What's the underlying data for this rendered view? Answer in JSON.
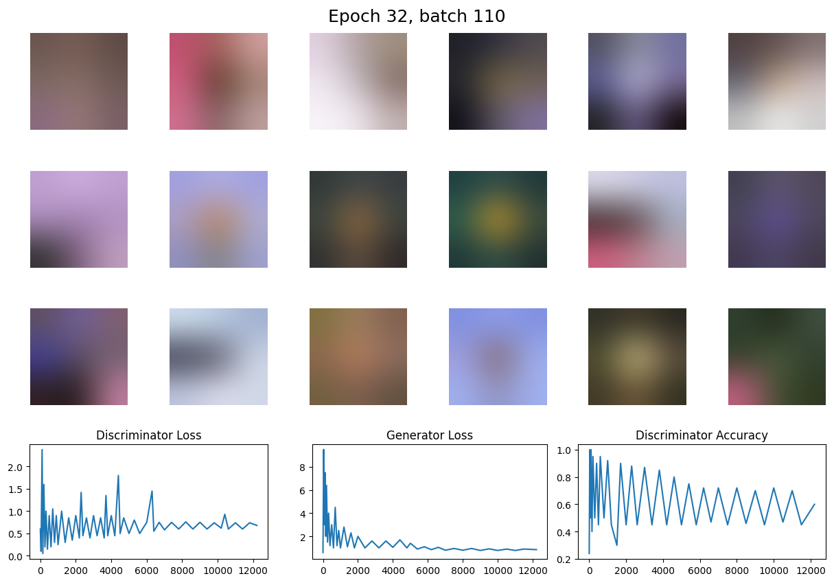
{
  "figure": {
    "title": "Epoch 32, batch 110",
    "images": [
      {
        "colors": [
          [
            "#6b5550",
            "#7a6058",
            "#5e4a45"
          ],
          [
            "#7d6a62",
            "#8a7068",
            "#6e5a55"
          ],
          [
            "#8a6a80",
            "#9a7a78",
            "#7a6066"
          ]
        ]
      },
      {
        "colors": [
          [
            "#c05070",
            "#a06058",
            "#d0a0a0"
          ],
          [
            "#d06080",
            "#503020",
            "#a08070"
          ],
          [
            "#d07090",
            "#806060",
            "#c0a0a0"
          ]
        ]
      },
      {
        "colors": [
          [
            "#e0d0e0",
            "#b0a0a0",
            "#a09080"
          ],
          [
            "#f0e8f0",
            "#c0b8c0",
            "#806860"
          ],
          [
            "#f8f4f8",
            "#f0e8f0",
            "#c0b0b0"
          ]
        ]
      },
      {
        "colors": [
          [
            "#202028",
            "#303040",
            "#504a50"
          ],
          [
            "#282830",
            "#807040",
            "#706050"
          ],
          [
            "#101018",
            "#605868",
            "#8070a0"
          ]
        ]
      },
      {
        "colors": [
          [
            "#505060",
            "#9090a0",
            "#7070a0"
          ],
          [
            "#6060a0",
            "#c0c0e0",
            "#8070a0"
          ],
          [
            "#202020",
            "#706090",
            "#100808"
          ]
        ]
      },
      {
        "colors": [
          [
            "#504040",
            "#605050",
            "#807070"
          ],
          [
            "#606070",
            "#c0a080",
            "#d0c0c0"
          ],
          [
            "#c0c0c0",
            "#f0f0f0",
            "#d0d0d0"
          ]
        ]
      },
      {
        "colors": [
          [
            "#c0a0d0",
            "#d0b0e0",
            "#c0a0d0"
          ],
          [
            "#b090c0",
            "#a080b0",
            "#b090c0"
          ],
          [
            "#303030",
            "#806080",
            "#c0a0c0"
          ]
        ]
      },
      {
        "colors": [
          [
            "#a0a0e0",
            "#b0b0e8",
            "#a0a0e0"
          ],
          [
            "#b0a0c0",
            "#c08050",
            "#b0b0d0"
          ],
          [
            "#9090c0",
            "#808080",
            "#a0a0d0"
          ]
        ]
      },
      {
        "colors": [
          [
            "#303838",
            "#404848",
            "#383c40"
          ],
          [
            "#404840",
            "#a07040",
            "#404840"
          ],
          [
            "#303030",
            "#605040",
            "#302828"
          ]
        ]
      },
      {
        "colors": [
          [
            "#204040",
            "#305050",
            "#203838"
          ],
          [
            "#306050",
            "#e0a020",
            "#405040"
          ],
          [
            "#203838",
            "#305048",
            "#203030"
          ]
        ]
      },
      {
        "colors": [
          [
            "#e0e0f0",
            "#d0d0e8",
            "#c0c0e0"
          ],
          [
            "#302020",
            "#504040",
            "#a0b0c0"
          ],
          [
            "#d06080",
            "#c08090",
            "#c0a0b0"
          ]
        ]
      },
      {
        "colors": [
          [
            "#404050",
            "#605870",
            "#504858"
          ],
          [
            "#504860",
            "#6050a0",
            "#504860"
          ],
          [
            "#403850",
            "#504868",
            "#403848"
          ]
        ]
      },
      {
        "colors": [
          [
            "#605060",
            "#7060a0",
            "#806070"
          ],
          [
            "#4040a0",
            "#605060",
            "#706070"
          ],
          [
            "#302020",
            "#201818",
            "#c080a0"
          ]
        ]
      },
      {
        "colors": [
          [
            "#d0e0f0",
            "#c0d0e8",
            "#a0b0d0"
          ],
          [
            "#303040",
            "#505060",
            "#d0d8e8"
          ],
          [
            "#c0c8e0",
            "#e0e0f0",
            "#d0d8e8"
          ]
        ]
      },
      {
        "colors": [
          [
            "#807040",
            "#a08060",
            "#806050"
          ],
          [
            "#906850",
            "#c08060",
            "#907060"
          ],
          [
            "#706040",
            "#806050",
            "#605040"
          ]
        ]
      },
      {
        "colors": [
          [
            "#8090e0",
            "#90a0f0",
            "#8090e0"
          ],
          [
            "#a0a0e0",
            "#806060",
            "#a0b0f0"
          ],
          [
            "#a0b0f0",
            "#9090c0",
            "#a0b0f0"
          ]
        ]
      },
      {
        "colors": [
          [
            "#303028",
            "#403828",
            "#282820"
          ],
          [
            "#505030",
            "#e0d090",
            "#605040"
          ],
          [
            "#403828",
            "#705838",
            "#303020"
          ]
        ]
      },
      {
        "colors": [
          [
            "#304030",
            "#202818",
            "#405040"
          ],
          [
            "#304028",
            "#506040",
            "#304030"
          ],
          [
            "#c06080",
            "#405030",
            "#303820"
          ]
        ]
      }
    ]
  },
  "chart_data": [
    {
      "type": "line",
      "title": "Discriminator Loss",
      "color": "#1f77b4",
      "x": [
        0,
        40,
        100,
        140,
        200,
        260,
        320,
        400,
        500,
        600,
        700,
        800,
        900,
        1000,
        1200,
        1400,
        1600,
        1800,
        2000,
        2200,
        2300,
        2400,
        2600,
        2800,
        3000,
        3200,
        3400,
        3600,
        3700,
        3800,
        4000,
        4200,
        4400,
        4500,
        4700,
        5000,
        5300,
        5600,
        6000,
        6300,
        6400,
        6700,
        7000,
        7400,
        7800,
        8200,
        8600,
        9000,
        9400,
        9800,
        10200,
        10400,
        10600,
        11000,
        11400,
        11800,
        12210
      ],
      "values": [
        0.6,
        0.1,
        2.38,
        0.05,
        1.6,
        0.2,
        1.0,
        0.15,
        0.9,
        0.2,
        1.05,
        0.3,
        0.9,
        0.25,
        1.0,
        0.3,
        0.85,
        0.35,
        0.9,
        0.4,
        1.42,
        0.45,
        0.85,
        0.4,
        0.9,
        0.45,
        0.85,
        0.4,
        1.35,
        0.45,
        0.9,
        0.45,
        1.8,
        0.5,
        0.85,
        0.5,
        0.8,
        0.5,
        0.75,
        1.45,
        0.55,
        0.75,
        0.58,
        0.75,
        0.6,
        0.76,
        0.6,
        0.75,
        0.6,
        0.74,
        0.62,
        0.93,
        0.6,
        0.74,
        0.6,
        0.74,
        0.68
      ],
      "xlim": [
        -610,
        12820
      ],
      "xticks": [
        0,
        2000,
        4000,
        6000,
        8000,
        10000,
        12000
      ],
      "ylim": [
        -0.07,
        2.5
      ],
      "yticks": [
        {
          "value": 0.0,
          "label": "0.0"
        },
        {
          "value": 0.5,
          "label": "0.5"
        },
        {
          "value": 1.0,
          "label": "1.0"
        },
        {
          "value": 1.5,
          "label": "1.5"
        },
        {
          "value": 2.0,
          "label": "2.0"
        }
      ]
    },
    {
      "type": "line",
      "title": "Generator Loss",
      "color": "#1f77b4",
      "x": [
        0,
        40,
        80,
        120,
        160,
        200,
        260,
        320,
        400,
        500,
        600,
        700,
        800,
        900,
        1000,
        1200,
        1400,
        1600,
        1800,
        2000,
        2400,
        2800,
        3200,
        3600,
        4000,
        4400,
        4800,
        5000,
        5400,
        5800,
        6200,
        6600,
        7000,
        7500,
        8000,
        8500,
        9000,
        9500,
        10000,
        10500,
        11000,
        11500,
        12210
      ],
      "values": [
        0.6,
        9.5,
        3.0,
        7.5,
        2.0,
        6.4,
        1.5,
        4.0,
        1.2,
        3.0,
        1.0,
        4.5,
        1.2,
        2.5,
        1.0,
        2.8,
        1.1,
        2.3,
        1.0,
        2.0,
        1.0,
        1.6,
        1.0,
        1.6,
        1.05,
        1.7,
        1.0,
        1.4,
        0.9,
        1.1,
        0.85,
        1.05,
        0.8,
        0.95,
        0.8,
        0.95,
        0.78,
        0.92,
        0.78,
        0.9,
        0.78,
        0.9,
        0.85
      ],
      "xlim": [
        -610,
        12820
      ],
      "xticks": [
        0,
        2000,
        4000,
        6000,
        8000,
        10000,
        12000
      ],
      "ylim": [
        0.05,
        9.95
      ],
      "yticks": [
        2,
        4,
        6,
        8
      ]
    },
    {
      "type": "line",
      "title": "Discriminator Accuracy",
      "color": "#1f77b4",
      "x": [
        0,
        30,
        60,
        100,
        150,
        200,
        300,
        400,
        500,
        600,
        800,
        1000,
        1200,
        1500,
        1700,
        2000,
        2300,
        2600,
        3000,
        3400,
        3800,
        4200,
        4600,
        5000,
        5400,
        5800,
        6200,
        6600,
        7000,
        7500,
        8000,
        8500,
        9000,
        9500,
        10000,
        10500,
        11000,
        11500,
        12210
      ],
      "values": [
        0.24,
        1.0,
        0.5,
        1.0,
        0.4,
        0.95,
        0.5,
        0.9,
        0.45,
        0.95,
        0.5,
        0.92,
        0.45,
        0.3,
        0.9,
        0.45,
        0.88,
        0.45,
        0.87,
        0.45,
        0.85,
        0.45,
        0.8,
        0.45,
        0.75,
        0.45,
        0.72,
        0.47,
        0.72,
        0.45,
        0.72,
        0.46,
        0.7,
        0.45,
        0.72,
        0.47,
        0.7,
        0.45,
        0.6
      ],
      "xlim": [
        -610,
        12820
      ],
      "xticks": [
        0,
        2000,
        4000,
        6000,
        8000,
        10000,
        12000
      ],
      "ylim": [
        0.2,
        1.04
      ],
      "yticks": [
        {
          "value": 0.2,
          "label": "0.2"
        },
        {
          "value": 0.4,
          "label": "0.4"
        },
        {
          "value": 0.6,
          "label": "0.6"
        },
        {
          "value": 0.8,
          "label": "0.8"
        },
        {
          "value": 1.0,
          "label": "1.0"
        }
      ]
    }
  ]
}
